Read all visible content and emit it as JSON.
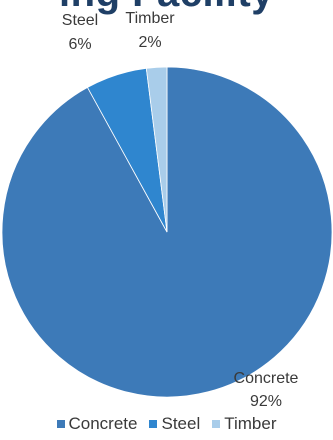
{
  "chart_data": {
    "type": "pie",
    "title": "",
    "title_partial_visible": "ing Facility",
    "categories": [
      "Concrete",
      "Steel",
      "Timber"
    ],
    "values": [
      92,
      6,
      2
    ],
    "value_labels": [
      "92%",
      "6%",
      "2%"
    ],
    "colors": [
      "#3d7ab8",
      "#2f86cf",
      "#a9cdea"
    ],
    "legend_position": "bottom"
  }
}
